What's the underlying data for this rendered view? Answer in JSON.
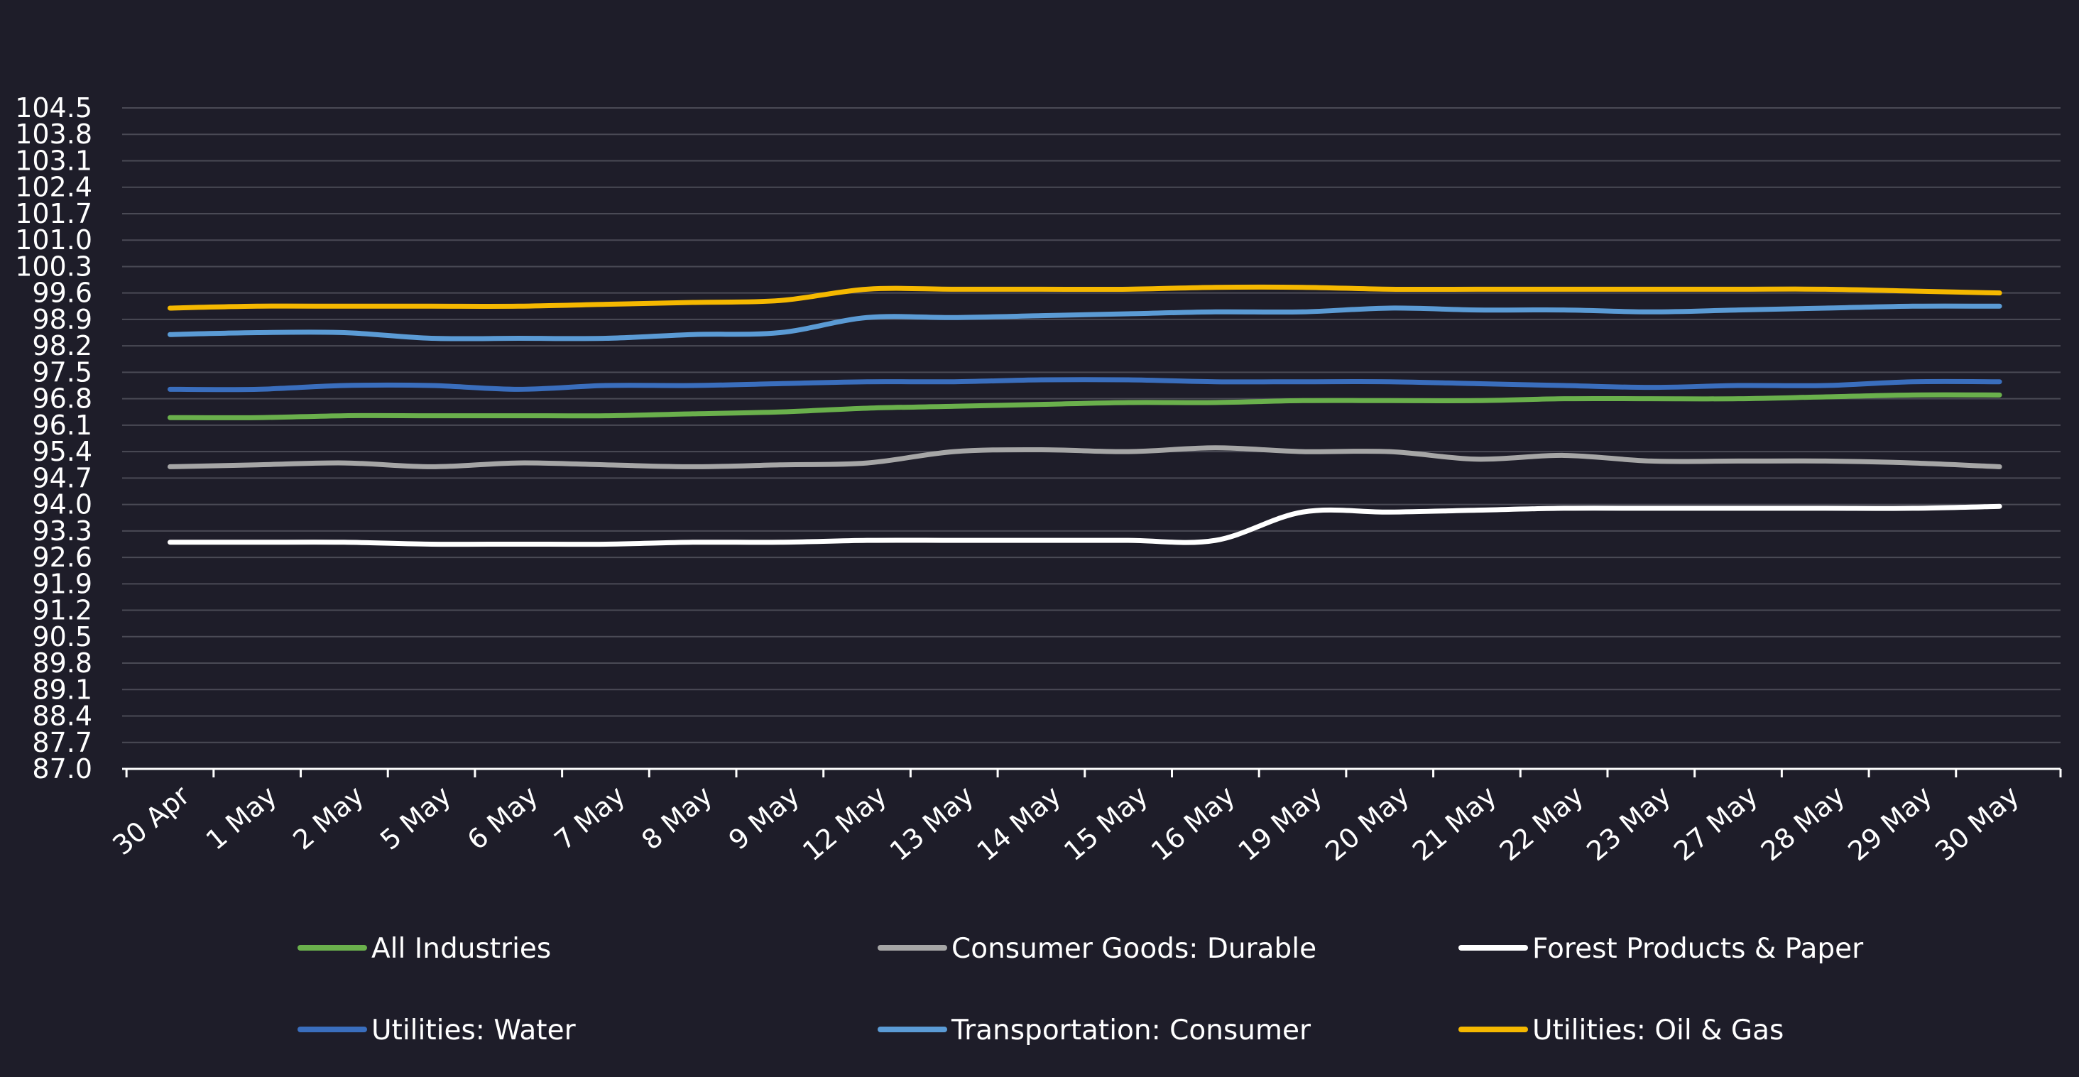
{
  "chart_data": {
    "type": "line",
    "title": "",
    "xlabel": "",
    "ylabel": "",
    "categories": [
      "30 Apr",
      "1 May",
      "2 May",
      "5 May",
      "6 May",
      "7 May",
      "8 May",
      "9 May",
      "12 May",
      "13 May",
      "14 May",
      "15 May",
      "16 May",
      "19 May",
      "20 May",
      "21 May",
      "22 May",
      "23 May",
      "27 May",
      "28 May",
      "29 May",
      "30 May"
    ],
    "y_ticks": [
      "87.0",
      "87.7",
      "88.4",
      "89.1",
      "89.8",
      "90.5",
      "91.2",
      "91.9",
      "92.6",
      "93.3",
      "94.0",
      "94.7",
      "95.4",
      "96.1",
      "96.8",
      "97.5",
      "98.2",
      "98.9",
      "99.6",
      "100.3",
      "101.0",
      "101.7",
      "102.4",
      "103.1",
      "103.8",
      "104.5"
    ],
    "ylim": [
      87.0,
      104.5
    ],
    "grid": true,
    "legend_position": "bottom",
    "series": [
      {
        "name": "All Industries",
        "color": "#6ab04c",
        "values": [
          96.3,
          96.3,
          96.35,
          96.35,
          96.35,
          96.35,
          96.4,
          96.45,
          96.55,
          96.6,
          96.65,
          96.7,
          96.7,
          96.75,
          96.75,
          96.75,
          96.8,
          96.8,
          96.8,
          96.85,
          96.9,
          96.9
        ]
      },
      {
        "name": "Consumer Goods: Durable",
        "color": "#a6a6a6",
        "values": [
          95.0,
          95.05,
          95.1,
          95.0,
          95.1,
          95.05,
          95.0,
          95.05,
          95.1,
          95.4,
          95.45,
          95.4,
          95.5,
          95.4,
          95.4,
          95.2,
          95.3,
          95.15,
          95.15,
          95.15,
          95.1,
          95.0
        ]
      },
      {
        "name": "Forest Products & Paper",
        "color": "#ffffff",
        "values": [
          93.0,
          93.0,
          93.0,
          92.95,
          92.95,
          92.95,
          93.0,
          93.0,
          93.05,
          93.05,
          93.05,
          93.05,
          93.05,
          93.8,
          93.8,
          93.85,
          93.9,
          93.9,
          93.9,
          93.9,
          93.9,
          93.95
        ]
      },
      {
        "name": "Utilities: Water",
        "color": "#3a6ebd",
        "values": [
          97.05,
          97.05,
          97.15,
          97.15,
          97.05,
          97.15,
          97.15,
          97.2,
          97.25,
          97.25,
          97.3,
          97.3,
          97.25,
          97.25,
          97.25,
          97.2,
          97.15,
          97.1,
          97.15,
          97.15,
          97.25,
          97.25
        ]
      },
      {
        "name": "Transportation: Consumer",
        "color": "#5b9bd5",
        "values": [
          98.5,
          98.55,
          98.55,
          98.4,
          98.4,
          98.4,
          98.5,
          98.55,
          98.95,
          98.95,
          99.0,
          99.05,
          99.1,
          99.1,
          99.2,
          99.15,
          99.15,
          99.1,
          99.15,
          99.2,
          99.25,
          99.25
        ]
      },
      {
        "name": "Utilities: Oil & Gas",
        "color": "#f5b800",
        "values": [
          99.2,
          99.25,
          99.25,
          99.25,
          99.25,
          99.3,
          99.35,
          99.4,
          99.7,
          99.7,
          99.7,
          99.7,
          99.75,
          99.75,
          99.7,
          99.7,
          99.7,
          99.7,
          99.7,
          99.7,
          99.65,
          99.6
        ]
      }
    ]
  }
}
